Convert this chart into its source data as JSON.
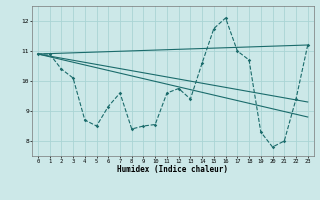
{
  "background_color": "#cce8e8",
  "grid_color": "#aad4d4",
  "line_color": "#1a6b6b",
  "xlabel": "Humidex (Indice chaleur)",
  "xlim_min": -0.5,
  "xlim_max": 23.5,
  "ylim_min": 7.5,
  "ylim_max": 12.5,
  "yticks": [
    8,
    9,
    10,
    11,
    12
  ],
  "xticks": [
    0,
    1,
    2,
    3,
    4,
    5,
    6,
    7,
    8,
    9,
    10,
    11,
    12,
    13,
    14,
    15,
    16,
    17,
    18,
    19,
    20,
    21,
    22,
    23
  ],
  "main_x": [
    0,
    1,
    2,
    3,
    4,
    5,
    6,
    7,
    8,
    9,
    10,
    11,
    12,
    13,
    14,
    15,
    16,
    17,
    18,
    19,
    20,
    21,
    22,
    23
  ],
  "main_y": [
    10.9,
    10.9,
    10.4,
    10.1,
    8.7,
    8.5,
    9.15,
    9.6,
    8.4,
    8.5,
    8.55,
    9.6,
    9.75,
    9.4,
    10.6,
    11.75,
    12.1,
    11.0,
    10.7,
    8.3,
    7.8,
    8.0,
    9.4,
    11.2
  ],
  "line2_x": [
    0,
    23
  ],
  "line2_y": [
    10.9,
    11.2
  ],
  "line3_x": [
    0,
    23
  ],
  "line3_y": [
    10.9,
    9.3
  ],
  "line4_x": [
    0,
    23
  ],
  "line4_y": [
    10.9,
    8.8
  ]
}
